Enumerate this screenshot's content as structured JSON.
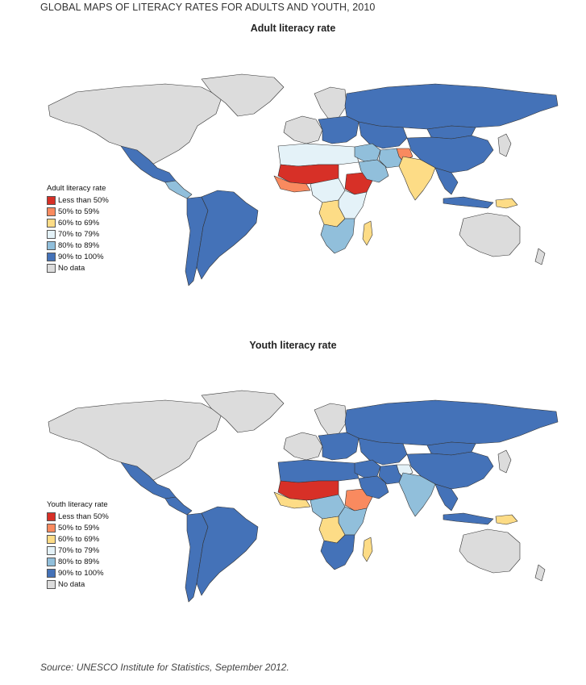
{
  "page_title": "GLOBAL MAPS OF LITERACY RATES FOR ADULTS AND YOUTH, 2010",
  "colors": {
    "lt50": "#d73027",
    "c50_59": "#f98a5f",
    "c60_69": "#fddc86",
    "c70_79": "#e4f2f8",
    "c80_89": "#91bfdb",
    "c90_100": "#4472b8",
    "nodata": "#dcdcdc",
    "border": "#333333"
  },
  "legend_items": [
    {
      "label": "Less than 50%",
      "color_key": "lt50"
    },
    {
      "label": "50% to 59%",
      "color_key": "c50_59"
    },
    {
      "label": "60% to 69%",
      "color_key": "c60_69"
    },
    {
      "label": "70% to 79%",
      "color_key": "c70_79"
    },
    {
      "label": "80% to 89%",
      "color_key": "c80_89"
    },
    {
      "label": "90% to 100%",
      "color_key": "c90_100"
    },
    {
      "label": "No data",
      "color_key": "nodata"
    }
  ],
  "maps": [
    {
      "title": "Adult literacy rate",
      "legend_title": "Adult literacy rate",
      "regions": {
        "north_america": "nodata",
        "greenland": "nodata",
        "mexico": "c90_100",
        "central_america": "c80_89",
        "south_america": "c90_100",
        "south_america_west": "c90_100",
        "europe_west": "nodata",
        "europe_east": "c90_100",
        "russia": "c90_100",
        "scandinavia": "nodata",
        "north_africa": "c70_79",
        "sahel": "lt50",
        "west_africa": "c50_59",
        "central_africa": "c70_79",
        "congo": "c60_69",
        "east_africa": "c70_79",
        "ethiopia": "lt50",
        "southern_africa": "c80_89",
        "madagascar": "c60_69",
        "middle_east": "c80_89",
        "arabia": "c80_89",
        "iran": "c80_89",
        "afghanistan": "c50_59",
        "india": "c60_69",
        "central_asia": "c90_100",
        "china": "c90_100",
        "mongolia": "c90_100",
        "japan": "nodata",
        "se_asia": "c90_100",
        "indonesia": "c90_100",
        "papua": "c60_69",
        "australia": "nodata",
        "new_zealand": "nodata"
      }
    },
    {
      "title": "Youth literacy rate",
      "legend_title": "Youth literacy rate",
      "regions": {
        "north_america": "nodata",
        "greenland": "nodata",
        "mexico": "c90_100",
        "central_america": "c90_100",
        "south_america": "c90_100",
        "south_america_west": "c90_100",
        "europe_west": "nodata",
        "europe_east": "c90_100",
        "russia": "c90_100",
        "scandinavia": "nodata",
        "north_africa": "c90_100",
        "sahel": "lt50",
        "west_africa": "c60_69",
        "central_africa": "c80_89",
        "congo": "c60_69",
        "east_africa": "c80_89",
        "ethiopia": "c50_59",
        "southern_africa": "c90_100",
        "madagascar": "c60_69",
        "middle_east": "c90_100",
        "arabia": "c90_100",
        "iran": "c90_100",
        "afghanistan": "c70_79",
        "india": "c80_89",
        "central_asia": "c90_100",
        "china": "c90_100",
        "mongolia": "c90_100",
        "japan": "nodata",
        "se_asia": "c90_100",
        "indonesia": "c90_100",
        "papua": "c60_69",
        "australia": "nodata",
        "new_zealand": "nodata"
      }
    }
  ],
  "source": "Source: UNESCO Institute for Statistics, September 2012."
}
